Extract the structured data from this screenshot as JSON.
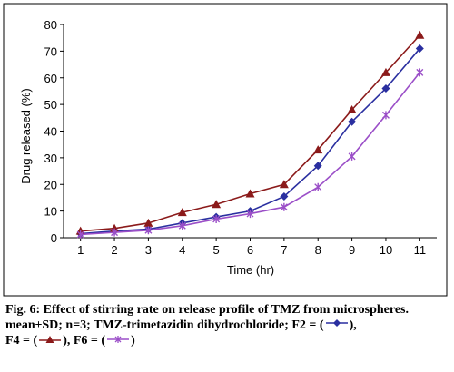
{
  "chart_data": {
    "type": "line",
    "x": [
      1,
      2,
      3,
      4,
      5,
      6,
      7,
      8,
      9,
      10,
      11
    ],
    "xlabel": "Time (hr)",
    "ylabel": "Drug released (%)",
    "xlim": [
      0.5,
      11.5
    ],
    "ylim": [
      0,
      80
    ],
    "xticks": [
      "1",
      "2",
      "3",
      "4",
      "5",
      "6",
      "7",
      "8",
      "9",
      "10",
      "11"
    ],
    "yticks": [
      "0",
      "10",
      "20",
      "30",
      "40",
      "50",
      "60",
      "70",
      "80"
    ],
    "grid": false,
    "series": [
      {
        "name": "F2",
        "color": "#2a2fa0",
        "marker": "diamond",
        "values": [
          1.5,
          2.5,
          3.2,
          5.5,
          7.8,
          10,
          15.5,
          27,
          43.5,
          56,
          71
        ]
      },
      {
        "name": "F4",
        "color": "#8b1a1a",
        "marker": "triangle",
        "values": [
          2.5,
          3.5,
          5.5,
          9.5,
          12.5,
          16.5,
          20,
          33,
          48,
          62,
          76
        ]
      },
      {
        "name": "F6",
        "color": "#9b4fc8",
        "marker": "star",
        "values": [
          1.2,
          2,
          2.8,
          4.5,
          7,
          9,
          11.5,
          19,
          30.5,
          46,
          62
        ]
      }
    ]
  },
  "caption": {
    "title": "Fig. 6: Effect of stirring rate on release profile of TMZ from microspheres.",
    "notes_start": "mean±SD; n=3; TMZ-trimetazidin dihydrochloride; F2 = (",
    "f4_label": "F4 = (",
    "f6_label": "F6 = (",
    "close_sep": "),",
    "close_end": ")"
  }
}
